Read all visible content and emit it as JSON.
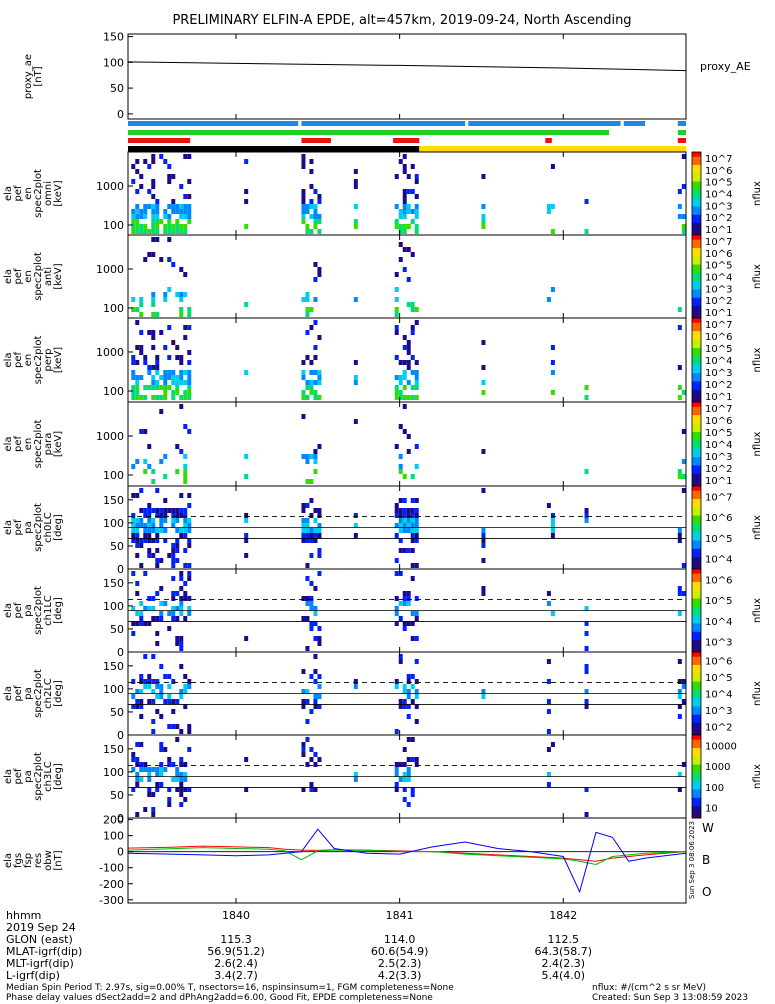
{
  "title": "PRELIMINARY ELFIN-A EPDE, alt=457km, 2019-09-24, North Ascending",
  "colors": {
    "spin_bar_blue": "#1e88e5",
    "spin_bar_green": "#22cc22",
    "spin_bar_red": "#ee1111",
    "spin_bar_black": "#000000",
    "spin_bar_yellow": "#ffdd00",
    "fgs_w": "#ff0000",
    "fgs_b": "#00bb00",
    "fgs_o": "#0000ff"
  },
  "time_axis": {
    "label": "hhmm",
    "date": "2019 Sep 24",
    "ticks": [
      "1840",
      "1841",
      "1842"
    ],
    "xlim_minutes": [
      1839.34,
      1842.75
    ]
  },
  "status_bars": {
    "blue_segments": [
      [
        1839.34,
        1840.38
      ],
      [
        1840.4,
        1841.4
      ],
      [
        1841.42,
        1842.35
      ],
      [
        1842.37,
        1842.5
      ],
      [
        1842.7,
        1842.75
      ]
    ],
    "green_segments": [
      [
        1839.34,
        1842.28
      ],
      [
        1842.7,
        1842.75
      ]
    ],
    "red_segments": [
      [
        1839.34,
        1839.72
      ],
      [
        1840.4,
        1840.58
      ],
      [
        1840.96,
        1841.12
      ],
      [
        1841.89,
        1841.93
      ],
      [
        1842.7,
        1842.75
      ]
    ],
    "black_segment": [
      1839.34,
      1841.12
    ],
    "yellow_segment": [
      1841.12,
      1842.75
    ]
  },
  "chart_data": [
    {
      "type": "line",
      "panel": "proxy_ae",
      "ylabel": "proxy_ae\n[nT]",
      "legend": "proxy_AE",
      "ylim": [
        -10,
        155
      ],
      "yticks": [
        0,
        50,
        100,
        150
      ],
      "x": [
        1839.34,
        1840.0,
        1841.0,
        1842.0,
        1842.75
      ],
      "values": [
        101,
        98,
        94,
        89,
        84
      ]
    },
    {
      "type": "heatmap",
      "panel": "ela_pef_en_spec2plot_omni",
      "ylabel": "ela\npef\nen\nspec2plot\nomni\n[keV]",
      "yscale": "log",
      "yticks": [
        "100",
        "1000"
      ],
      "colorbar_label": "nflux",
      "colorbar_ticks": [
        "10^1",
        "10^2",
        "10^3",
        "10^4",
        "10^5",
        "10^6",
        "10^7"
      ]
    },
    {
      "type": "heatmap",
      "panel": "ela_pef_en_spec2plot_anti",
      "ylabel": "ela\npef\nen\nspec2plot\nanti\n[keV]",
      "yscale": "log",
      "yticks": [
        "100",
        "1000"
      ],
      "colorbar_label": "nflux",
      "colorbar_ticks": [
        "10^1",
        "10^2",
        "10^3",
        "10^4",
        "10^5",
        "10^6",
        "10^7"
      ]
    },
    {
      "type": "heatmap",
      "panel": "ela_pef_en_spec2plot_perp",
      "ylabel": "ela\npef\nen\nspec2plot\nperp\n[keV]",
      "yscale": "log",
      "yticks": [
        "100",
        "1000"
      ],
      "colorbar_label": "nflux",
      "colorbar_ticks": [
        "10^1",
        "10^2",
        "10^3",
        "10^4",
        "10^5",
        "10^6",
        "10^7"
      ]
    },
    {
      "type": "heatmap",
      "panel": "ela_pef_en_spec2plot_para",
      "ylabel": "ela\npef\nen\nspec2plot\npara\n[keV]",
      "yscale": "log",
      "yticks": [
        "100",
        "1000"
      ],
      "colorbar_label": "nflux",
      "colorbar_ticks": [
        "10^1",
        "10^2",
        "10^3",
        "10^4",
        "10^5",
        "10^6",
        "10^7"
      ]
    },
    {
      "type": "heatmap",
      "panel": "ela_pef_pa_spec2plot_ch0LC",
      "ylabel": "ela\npef\npa\nspec2plot\nch0LC\n[deg]",
      "ylim": [
        0,
        180
      ],
      "yticks": [
        0,
        50,
        100,
        150
      ],
      "colorbar_label": "nflux",
      "colorbar_ticks": [
        "10^4",
        "10^5",
        "10^6",
        "10^7"
      ]
    },
    {
      "type": "heatmap",
      "panel": "ela_pef_pa_spec2plot_ch1LC",
      "ylabel": "ela\npef\npa\nspec2plot\nch1LC\n[deg]",
      "ylim": [
        0,
        180
      ],
      "yticks": [
        0,
        50,
        100,
        150
      ],
      "colorbar_label": "nflux",
      "colorbar_ticks": [
        "10^3",
        "10^4",
        "10^5",
        "10^6"
      ]
    },
    {
      "type": "heatmap",
      "panel": "ela_pef_pa_spec2plot_ch2LC",
      "ylabel": "ela\npef\npa\nspec2plot\nch2LC\n[deg]",
      "ylim": [
        0,
        180
      ],
      "yticks": [
        0,
        50,
        100,
        150
      ],
      "colorbar_label": "nflux",
      "colorbar_ticks": [
        "10^2",
        "10^3",
        "10^4",
        "10^5",
        "10^6"
      ]
    },
    {
      "type": "heatmap",
      "panel": "ela_pef_pa_spec2plot_ch3LC",
      "ylabel": "ela\npef\npa\nspec2plot\nch3LC\n[deg]",
      "ylim": [
        0,
        180
      ],
      "yticks": [
        0,
        50,
        100,
        150
      ],
      "colorbar_label": "nflux",
      "colorbar_ticks": [
        "10",
        "100",
        "1000",
        "10000"
      ]
    },
    {
      "type": "line",
      "panel": "ela_fgs_fsp_res_obw",
      "ylabel": "ela\nfgs\nfsp\nres\nobw\n[nT]",
      "ylim": [
        -320,
        210
      ],
      "yticks": [
        -300,
        -200,
        -100,
        0,
        100,
        200
      ],
      "x": [
        1839.34,
        1839.6,
        1839.8,
        1840.0,
        1840.2,
        1840.3,
        1840.4,
        1840.5,
        1840.6,
        1840.8,
        1841.0,
        1841.2,
        1841.4,
        1841.6,
        1841.8,
        1842.0,
        1842.1,
        1842.2,
        1842.3,
        1842.4,
        1842.5,
        1842.75
      ],
      "series": [
        {
          "name": "W",
          "values": [
            22,
            28,
            35,
            30,
            25,
            15,
            10,
            8,
            12,
            10,
            5,
            0,
            -10,
            -20,
            -30,
            -40,
            -50,
            -60,
            -40,
            -30,
            -20,
            0
          ]
        },
        {
          "name": "B",
          "values": [
            10,
            18,
            25,
            20,
            15,
            5,
            -50,
            5,
            10,
            8,
            2,
            0,
            -15,
            -25,
            -35,
            -45,
            -60,
            -80,
            -30,
            -20,
            -10,
            0
          ]
        },
        {
          "name": "O",
          "values": [
            -10,
            -15,
            -20,
            -25,
            -20,
            -10,
            0,
            140,
            20,
            -10,
            -15,
            30,
            60,
            20,
            0,
            -30,
            -250,
            120,
            90,
            -60,
            -40,
            -10
          ]
        }
      ]
    }
  ],
  "footer": {
    "hhmm_label": "hhmm",
    "date_label": "2019 Sep 24",
    "rows": [
      {
        "label": "GLON (east)",
        "values": [
          "115.3",
          "114.0",
          "112.5"
        ]
      },
      {
        "label": "MLAT-igrf(dip)",
        "values": [
          "56.9(51.2)",
          "60.6(54.9)",
          "64.3(58.7)"
        ]
      },
      {
        "label": "MLT-igrf(dip)",
        "values": [
          "2.6(2.4)",
          "2.5(2.3)",
          "2.4(2.3)"
        ]
      },
      {
        "label": "L-igrf(dip)",
        "values": [
          "3.4(2.7)",
          "4.2(3.3)",
          "5.4(4.0)"
        ]
      }
    ],
    "note1": "Median Spin Period T: 2.97s, sig=0.00% T, nsectors=16, nspinsinsum=1, FGM completeness=None",
    "note2": "Phase delay values dSect2add=2 and dPhAng2add=6.00, Good Fit, EPDE completeness=None",
    "units": "nflux: #/(cm^2 s sr MeV)",
    "created": "Created: Sun Sep  3 13:08:59 2023",
    "side_stamp": "Sun Sep 3 08:06:2023"
  }
}
